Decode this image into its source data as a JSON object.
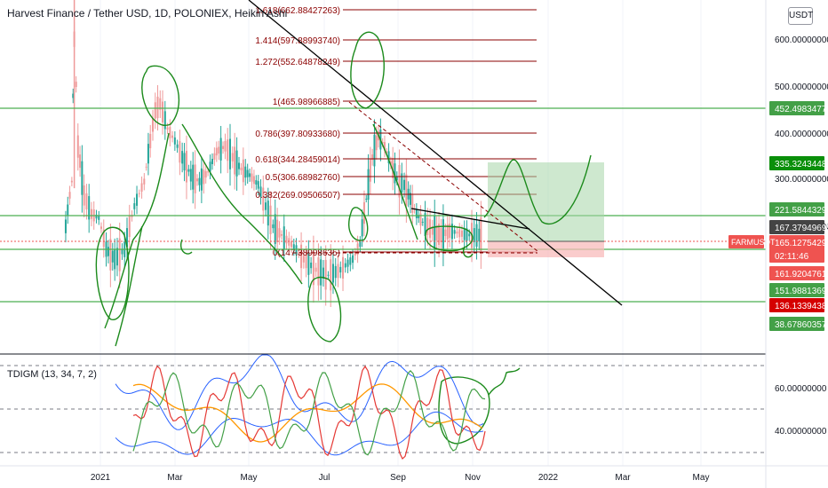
{
  "title": "Harvest Finance / Tether USD, 1D, POLONIEX, Heikin Ashi",
  "currency_button": "USDT",
  "indicator_title": "TDIGM (13, 34, 7, 2)",
  "colors": {
    "up": "#26a69a",
    "down": "#ef9a9a",
    "fib": "#8b0000",
    "fib_text": "#8b0000",
    "hline": "#4caf50",
    "drawing": "#1b8a1b",
    "trend": "#000000",
    "tp_zone": "#a5d6a7",
    "sl_zone": "#f8bbbb",
    "blue": "#2962ff",
    "orange": "#ff9800",
    "red": "#e53935",
    "green_ind": "#43a047"
  },
  "chart_data": [
    {
      "type": "candlestick",
      "title": "Harvest Finance / Tether USD, 1D, POLONIEX, Heikin Ashi",
      "series": [
        {
          "name": "FARMUSDT",
          "points": [
            [
              "2020-12-03",
              200
            ],
            [
              "2020-12-08",
              260
            ],
            [
              "2020-12-10",
              600
            ],
            [
              "2020-12-13",
              320
            ],
            [
              "2020-12-18",
              240
            ],
            [
              "2020-12-24",
              215
            ],
            [
              "2020-12-30",
              210
            ],
            [
              "2021-01-05",
              175
            ],
            [
              "2021-01-12",
              165
            ],
            [
              "2021-01-20",
              175
            ],
            [
              "2021-01-28",
              225
            ],
            [
              "2021-02-05",
              260
            ],
            [
              "2021-02-10",
              330
            ],
            [
              "2021-02-14",
              395
            ],
            [
              "2021-02-18",
              410
            ],
            [
              "2021-02-24",
              355
            ],
            [
              "2021-03-02",
              330
            ],
            [
              "2021-03-08",
              300
            ],
            [
              "2021-03-15",
              270
            ],
            [
              "2021-03-22",
              260
            ],
            [
              "2021-03-29",
              275
            ],
            [
              "2021-04-05",
              310
            ],
            [
              "2021-04-12",
              320
            ],
            [
              "2021-04-18",
              300
            ],
            [
              "2021-04-25",
              280
            ],
            [
              "2021-05-02",
              270
            ],
            [
              "2021-05-09",
              255
            ],
            [
              "2021-05-15",
              225
            ],
            [
              "2021-05-21",
              200
            ],
            [
              "2021-05-28",
              190
            ],
            [
              "2021-06-05",
              180
            ],
            [
              "2021-06-15",
              165
            ],
            [
              "2021-06-25",
              155
            ],
            [
              "2021-07-05",
              150
            ],
            [
              "2021-07-15",
              155
            ],
            [
              "2021-07-25",
              165
            ],
            [
              "2021-07-31",
              180
            ],
            [
              "2021-08-05",
              235
            ],
            [
              "2021-08-10",
              300
            ],
            [
              "2021-08-15",
              340
            ],
            [
              "2021-08-20",
              320
            ],
            [
              "2021-08-25",
              290
            ],
            [
              "2021-08-30",
              265
            ],
            [
              "2021-09-05",
              255
            ],
            [
              "2021-09-10",
              235
            ],
            [
              "2021-09-15",
              215
            ],
            [
              "2021-09-20",
              205
            ],
            [
              "2021-09-28",
              195
            ],
            [
              "2021-10-05",
              190
            ],
            [
              "2021-10-12",
              195
            ],
            [
              "2021-10-20",
              192
            ],
            [
              "2021-10-28",
              190
            ],
            [
              "2021-11-05",
              190
            ],
            [
              "2021-11-08",
              194
            ]
          ]
        }
      ],
      "x_ticks": [
        "2021",
        "Mar",
        "May",
        "Jul",
        "Sep",
        "Nov",
        "2022",
        "Mar",
        "May"
      ],
      "y_ticks": [
        "600.00000000",
        "500.00000000",
        "400.00000000",
        "300.00000000",
        "200.00000000"
      ],
      "fib_levels": [
        {
          "label": "1.618(662.88427263)",
          "value": 662.88
        },
        {
          "label": "1.414(597.88993740)",
          "value": 597.89
        },
        {
          "label": "1.272(552.64878249)",
          "value": 552.65
        },
        {
          "label": "1(465.98966885)",
          "value": 465.99
        },
        {
          "label": "0.786(397.80933680)",
          "value": 397.81
        },
        {
          "label": "0.618(344.28459014)",
          "value": 344.28
        },
        {
          "label": "0.5(306.68982760)",
          "value": 306.69
        },
        {
          "label": "0.382(269.09506507)",
          "value": 269.1
        },
        {
          "label": "0(147.38998635)",
          "value": 147.39
        }
      ],
      "horizontal_lines": [
        452.49834777,
        221.58443296,
        151.98813695,
        38.67860357
      ],
      "price_labels": [
        {
          "text": "452.49834777",
          "color": "#43a047"
        },
        {
          "text": "335.32434480",
          "color": "#0a8f0a"
        },
        {
          "text": "221.58443296",
          "color": "#43a047"
        },
        {
          "text": "167.37949695",
          "color": "#444444"
        },
        {
          "text": "165.12754297",
          "color": "#ef5350"
        },
        {
          "text": "02:11:46",
          "color": "#ef5350"
        },
        {
          "text": "161.92047619",
          "color": "#ef5350"
        },
        {
          "text": "151.98813695",
          "color": "#43a047"
        },
        {
          "text": "136.13394386",
          "color": "#d50000"
        },
        {
          "text": "38.67860357",
          "color": "#43a047"
        }
      ],
      "symbol_tag": "FARMUSDT"
    },
    {
      "type": "line",
      "title": "TDIGM (13, 34, 7, 2)",
      "y_ticks": [
        "60.00000000",
        "40.00000000"
      ],
      "levels": [
        68,
        50,
        32
      ]
    }
  ]
}
